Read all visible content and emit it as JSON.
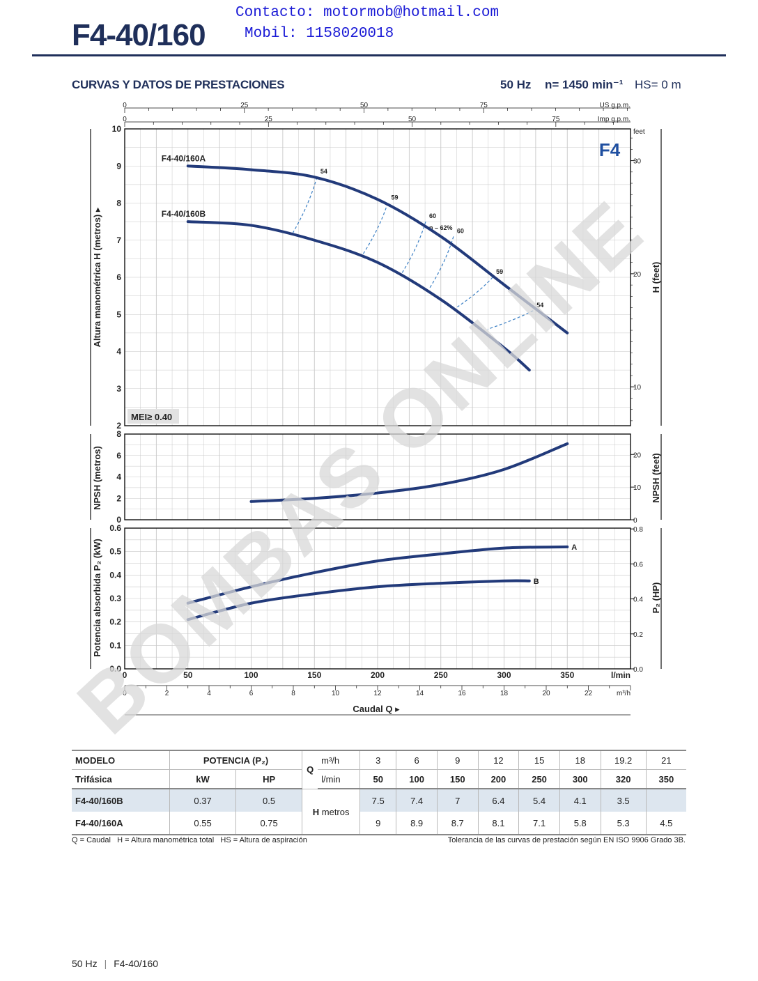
{
  "header": {
    "contact_line": "Contacto: motormob@hotmail.com",
    "mobile_line": "Mobil: 1158020018",
    "model_title": "F4-40/160"
  },
  "section": {
    "title": "CURVAS Y DATOS DE PRESTACIONES",
    "frequency": "50 Hz",
    "speed": "n= 1450 min⁻¹",
    "suction": "HS= 0 m"
  },
  "watermark": "BOMBAS ONLINE",
  "chart_data": [
    {
      "type": "line",
      "title": "",
      "badge": "F4",
      "mei_label": "MEI≥ 0.40",
      "xlabel": "Caudal Q",
      "ylabel": "Altura manométrica H (metros)",
      "ylabel_right": "H (feet)",
      "xlim": [
        0,
        400
      ],
      "ylim": [
        2,
        10
      ],
      "top_axes": [
        {
          "unit": "US g.p.m.",
          "ticks": [
            0,
            25,
            50,
            75
          ]
        },
        {
          "unit": "Imp g.p.m.",
          "ticks": [
            0,
            25,
            50,
            75
          ]
        }
      ],
      "right_unit": "feet",
      "right_ticks": [
        10,
        20,
        30
      ],
      "series": [
        {
          "name": "F4-40/160A",
          "x": [
            50,
            100,
            150,
            200,
            250,
            300,
            350
          ],
          "y": [
            9,
            8.9,
            8.7,
            8.1,
            7.1,
            5.8,
            4.5
          ]
        },
        {
          "name": "F4-40/160B",
          "x": [
            50,
            100,
            150,
            200,
            250,
            300,
            320
          ],
          "y": [
            7.5,
            7.4,
            7,
            6.4,
            5.4,
            4.1,
            3.5
          ]
        }
      ],
      "efficiency": {
        "label": "η – 62%",
        "lines": [
          {
            "label": "54",
            "a": [
              152,
              8.7
            ],
            "b": [
              133,
              7.2
            ]
          },
          {
            "label": "59",
            "a": [
              208,
              8.0
            ],
            "b": [
              188,
              6.6
            ]
          },
          {
            "label": "60",
            "a": [
              238,
              7.5
            ],
            "b": [
              219,
              6.1
            ]
          },
          {
            "label": "60",
            "a": [
              260,
              7.1
            ],
            "b": [
              241,
              5.7
            ]
          },
          {
            "label": "59",
            "a": [
              291,
              6.0
            ],
            "b": [
              263,
              5.2
            ]
          },
          {
            "label": "54",
            "a": [
              323,
              5.1
            ],
            "b": [
              287,
              4.6
            ]
          }
        ]
      }
    },
    {
      "type": "line",
      "ylabel": "NPSH (metros)",
      "ylabel_right": "NPSH (feet)",
      "xlim": [
        0,
        400
      ],
      "ylim": [
        0,
        8
      ],
      "right_ticks": [
        0,
        10,
        20
      ],
      "series": [
        {
          "name": "",
          "x": [
            100,
            150,
            200,
            250,
            300,
            350
          ],
          "y": [
            1.7,
            2.0,
            2.5,
            3.3,
            4.7,
            7.1
          ]
        }
      ]
    },
    {
      "type": "line",
      "ylabel": "Potencia absorbida P₂ (kW)",
      "ylabel_right": "P₂ (HP)",
      "xlim": [
        0,
        400
      ],
      "ylim": [
        0,
        0.6
      ],
      "right_ticks": [
        0,
        0.2,
        0.4,
        0.6,
        0.8
      ],
      "x_ticks": [
        0,
        50,
        100,
        150,
        200,
        250,
        300,
        350
      ],
      "x_unit": "l/min",
      "x2_unit": "m³/h",
      "x2_ticks": [
        0,
        2,
        4,
        6,
        8,
        10,
        12,
        14,
        16,
        18,
        20,
        22
      ],
      "series": [
        {
          "name": "A",
          "x": [
            50,
            100,
            150,
            200,
            250,
            300,
            350
          ],
          "y": [
            0.28,
            0.35,
            0.41,
            0.46,
            0.49,
            0.515,
            0.52
          ]
        },
        {
          "name": "B",
          "x": [
            50,
            100,
            150,
            200,
            250,
            300,
            320
          ],
          "y": [
            0.21,
            0.28,
            0.32,
            0.35,
            0.365,
            0.375,
            0.375
          ]
        }
      ]
    }
  ],
  "table": {
    "h_modelo": "MODELO",
    "h_trifasica": "Trifásica",
    "h_potencia": "POTENCIA (P₂)",
    "h_kw": "kW",
    "h_hp": "HP",
    "h_q": "Q",
    "h_m3h": "m³/h",
    "h_lmin": "l/min",
    "h_h": "H",
    "h_metros": "metros",
    "m3h": [
      "3",
      "6",
      "9",
      "12",
      "15",
      "18",
      "19.2",
      "21"
    ],
    "lmin": [
      "50",
      "100",
      "150",
      "200",
      "250",
      "300",
      "320",
      "350"
    ],
    "rows": [
      {
        "model": "F4-40/160B",
        "kw": "0.37",
        "hp": "0.5",
        "h": [
          "7.5",
          "7.4",
          "7",
          "6.4",
          "5.4",
          "4.1",
          "3.5",
          ""
        ]
      },
      {
        "model": "F4-40/160A",
        "kw": "0.55",
        "hp": "0.75",
        "h": [
          "9",
          "8.9",
          "8.7",
          "8.1",
          "7.1",
          "5.8",
          "5.3",
          "4.5"
        ]
      }
    ]
  },
  "footnotes": {
    "legend": "Q = Caudal   H = Altura manométrica total   HS = Altura de aspiración",
    "tolerance": "Tolerancia de las curvas de prestación según EN ISO 9906 Grado 3B."
  },
  "page_footer": {
    "freq": "50 Hz",
    "model": "F4-40/160"
  },
  "colors": {
    "curve": "#223a7a",
    "eff": "#3b7fc4",
    "title": "#1f2f5a",
    "grid": "#c8c8c8",
    "watermark": "#d8d8d8"
  }
}
